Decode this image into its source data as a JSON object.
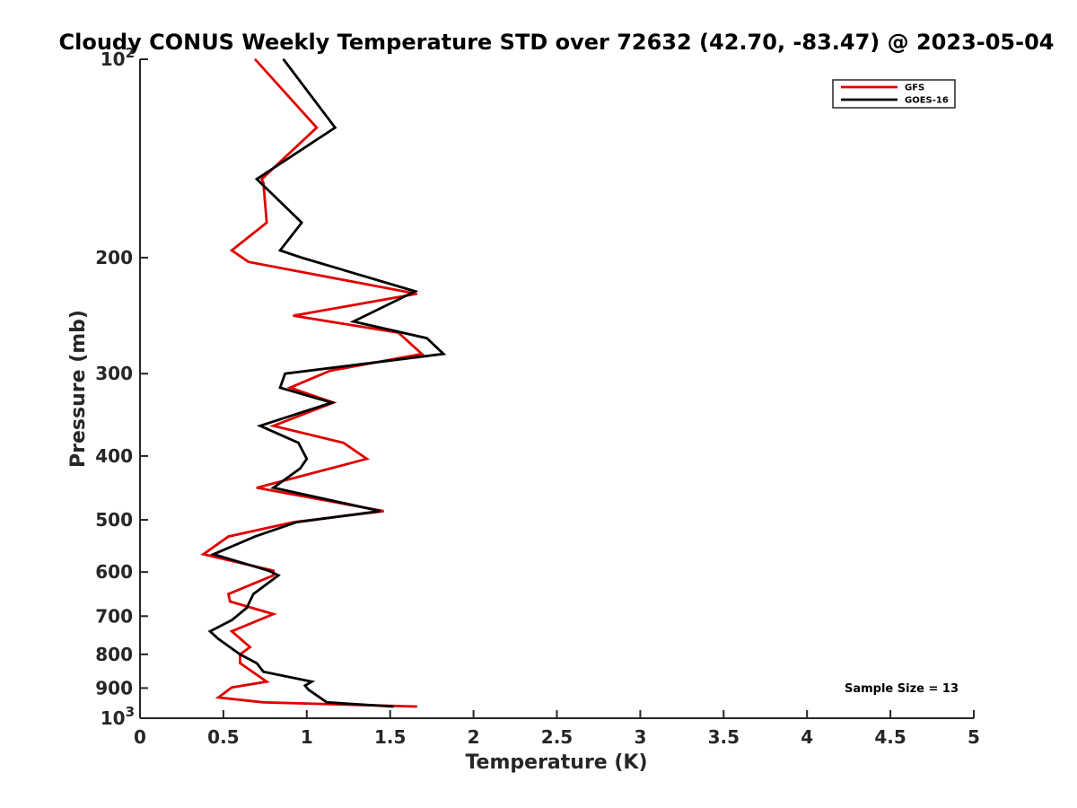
{
  "chart_data": {
    "type": "line",
    "title": "Cloudy CONUS Weekly Temperature STD over 72632 (42.70, -83.47) @ 2023-05-04",
    "xlabel": "Temperature (K)",
    "ylabel": "Pressure (mb)",
    "xlim": [
      0,
      5
    ],
    "ylim": [
      100,
      1000
    ],
    "yscale": "log",
    "y_reversed": true,
    "x_ticks": [
      "0",
      "0.5",
      "1",
      "1.5",
      "2",
      "2.5",
      "3",
      "3.5",
      "4",
      "4.5",
      "5"
    ],
    "y_ticks": [
      {
        "value": 100,
        "base": "10",
        "exp": "2"
      },
      {
        "value": 200,
        "label": "200"
      },
      {
        "value": 300,
        "label": "300"
      },
      {
        "value": 400,
        "label": "400"
      },
      {
        "value": 500,
        "label": "500"
      },
      {
        "value": 600,
        "label": "600"
      },
      {
        "value": 700,
        "label": "700"
      },
      {
        "value": 800,
        "label": "800"
      },
      {
        "value": 900,
        "label": "900"
      },
      {
        "value": 1000,
        "base": "10",
        "exp": "3"
      }
    ],
    "grid": false,
    "legend_position": "top-right",
    "annotation": "Sample Size = 13",
    "series": [
      {
        "name": "GFS",
        "color": "#e00000",
        "x": [
          0.69,
          1.06,
          0.73,
          0.74,
          0.76,
          0.55,
          0.65,
          1.66,
          0.92,
          1.55,
          1.69,
          1.14,
          0.9,
          1.16,
          0.8,
          1.22,
          1.36,
          1.14,
          0.7,
          1.46,
          0.92,
          0.53,
          0.38,
          0.8,
          0.8,
          0.53,
          0.54,
          0.8,
          0.55,
          0.66,
          0.6,
          0.6,
          0.76,
          0.55,
          0.47,
          0.74,
          1.66
        ],
        "y": [
          100,
          127,
          152,
          154,
          177,
          195,
          203,
          227,
          245,
          260,
          280,
          297,
          315,
          332,
          360,
          382,
          404,
          418,
          447,
          485,
          504,
          530,
          564,
          597,
          607,
          648,
          665,
          695,
          738,
          780,
          800,
          825,
          880,
          898,
          930,
          946,
          960
        ]
      },
      {
        "name": "GOES-16",
        "color": "#000000",
        "x": [
          0.86,
          1.17,
          0.7,
          0.97,
          0.84,
          0.97,
          1.65,
          1.28,
          1.72,
          1.82,
          0.87,
          0.84,
          1.15,
          0.72,
          0.95,
          1.0,
          0.96,
          0.8,
          1.44,
          0.94,
          0.69,
          0.44,
          0.77,
          0.83,
          0.68,
          0.64,
          0.55,
          0.42,
          0.47,
          0.6,
          0.7,
          0.74,
          1.03,
          0.99,
          1.01,
          1.12,
          1.52
        ],
        "y": [
          100,
          127,
          152,
          177,
          195,
          200,
          225,
          250,
          265,
          280,
          300,
          315,
          332,
          360,
          382,
          404,
          418,
          447,
          485,
          504,
          530,
          564,
          597,
          607,
          648,
          680,
          710,
          738,
          758,
          800,
          825,
          850,
          880,
          892,
          905,
          946,
          960
        ]
      }
    ]
  }
}
